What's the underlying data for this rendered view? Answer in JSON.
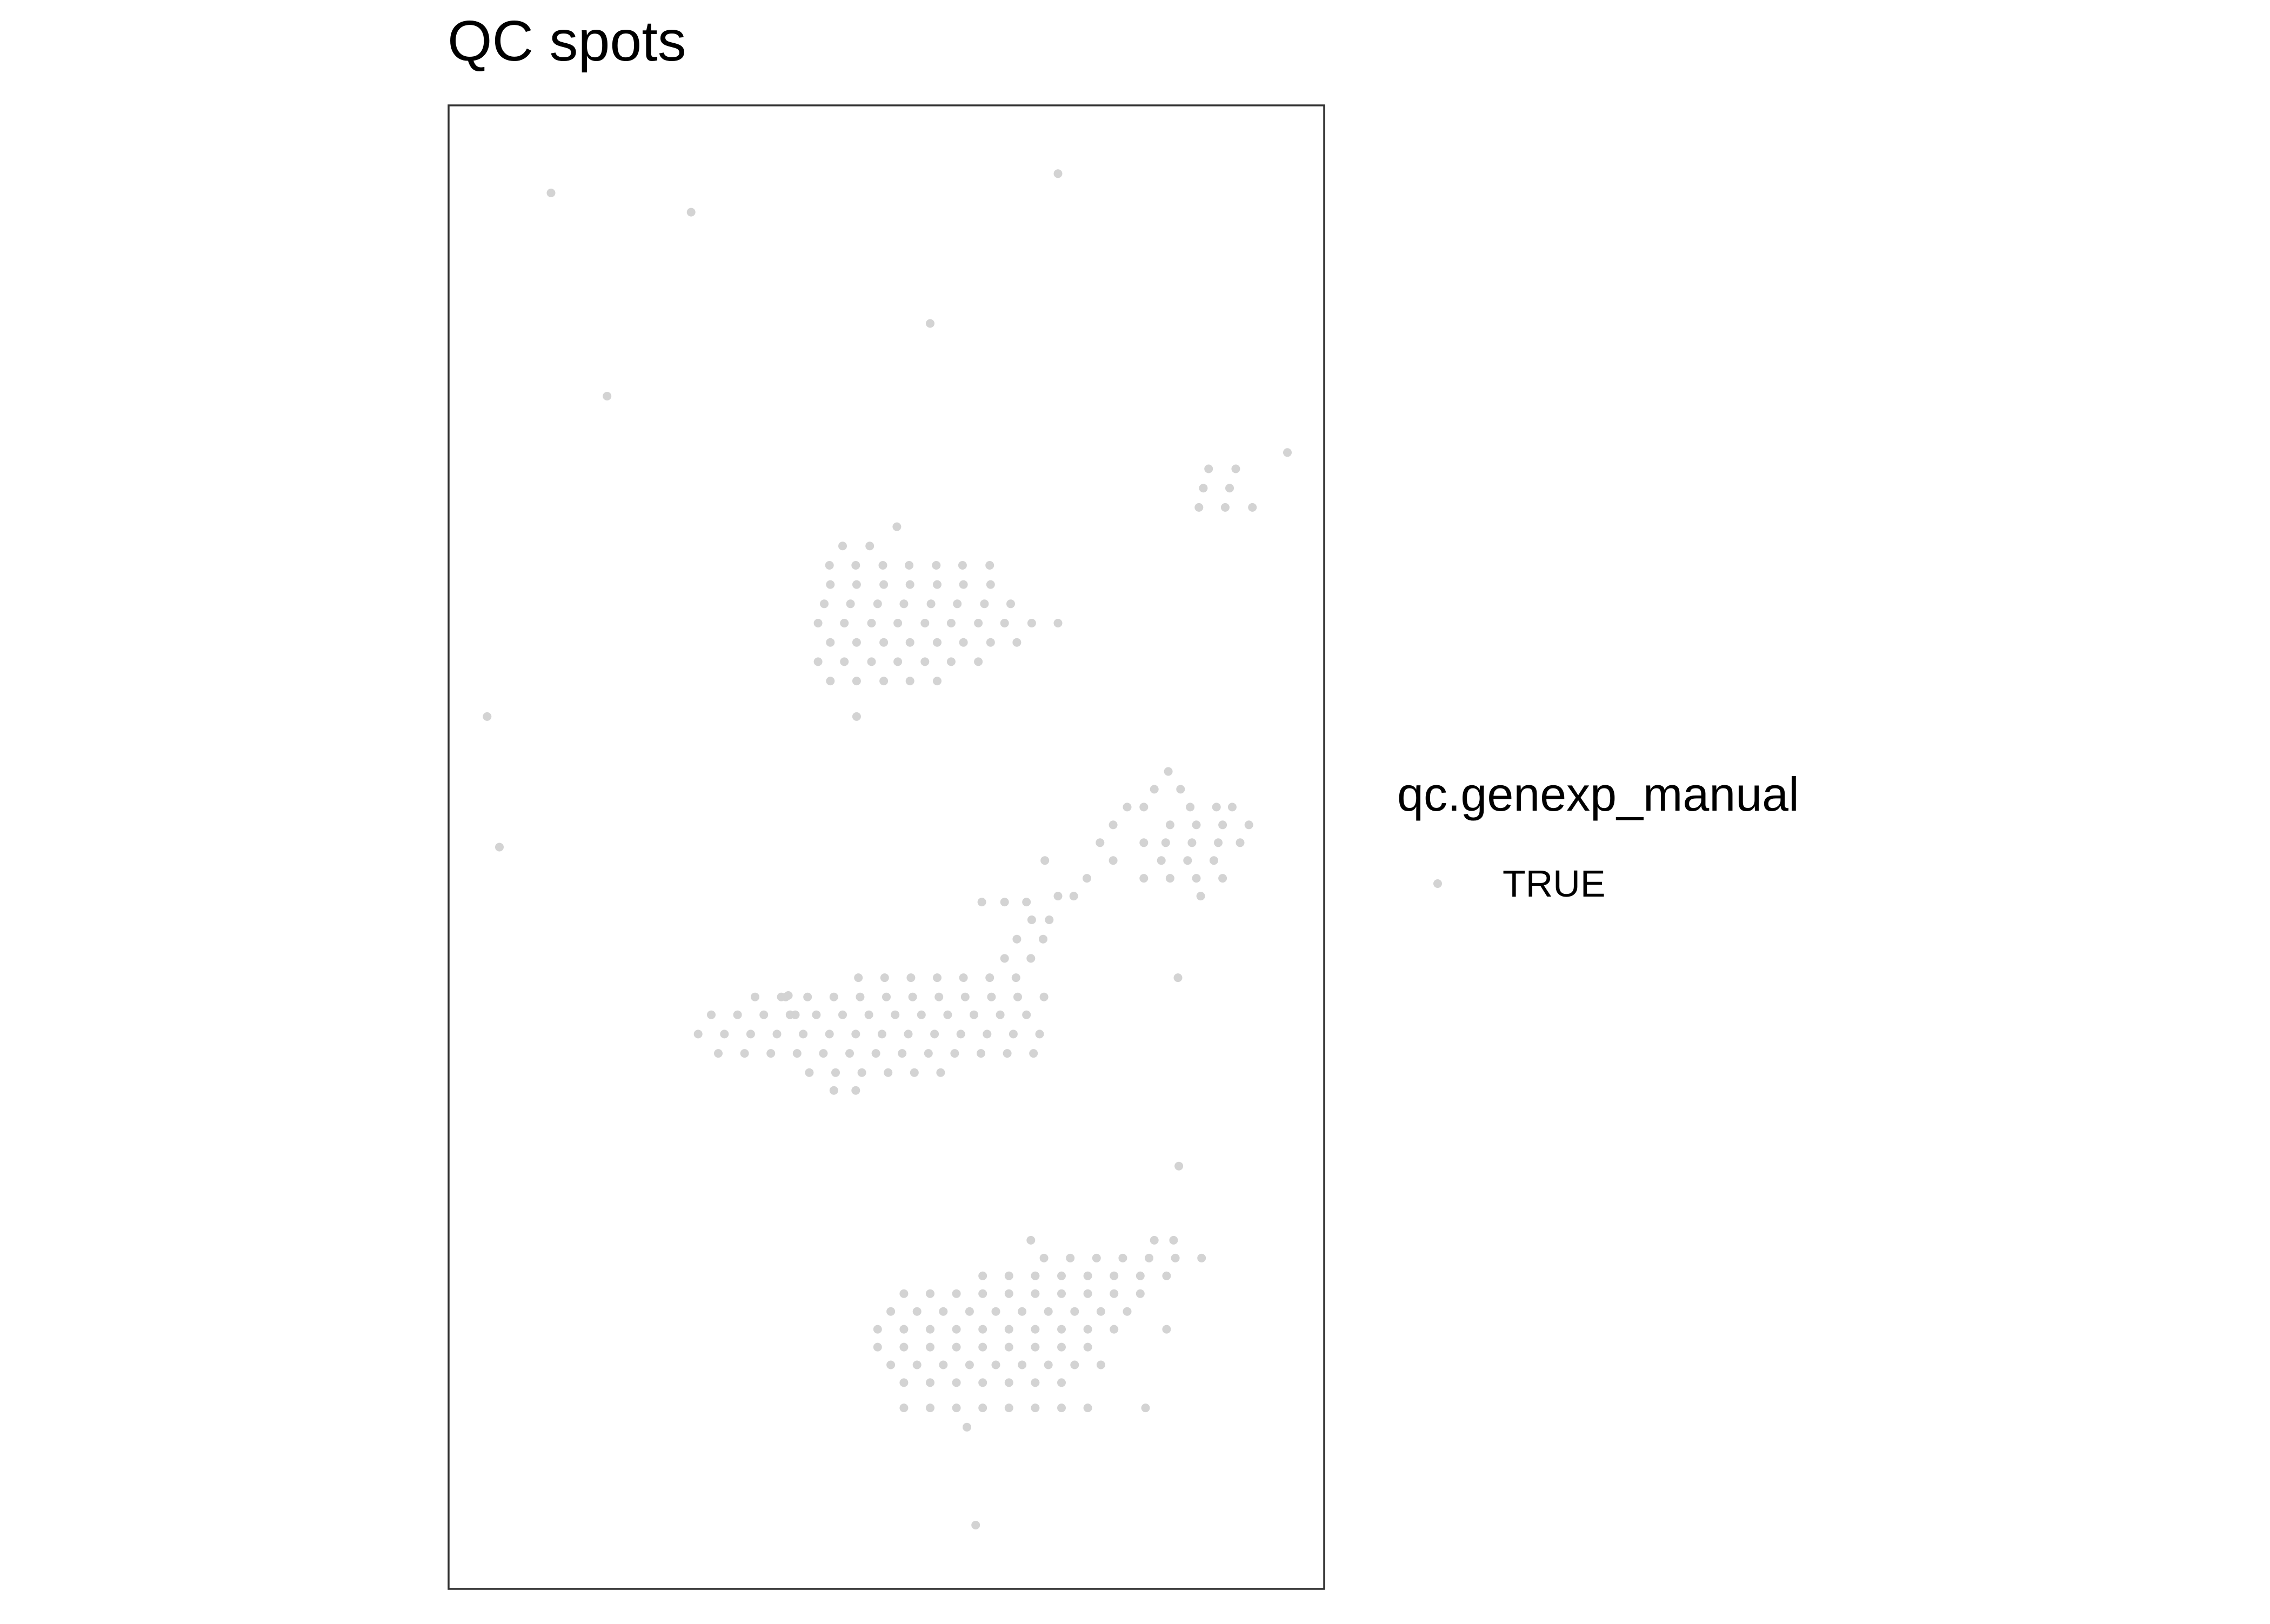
{
  "chart_data": {
    "type": "scatter",
    "title": "QC spots",
    "xlabel": "",
    "ylabel": "",
    "grid": false,
    "axes_visible": false,
    "legend_position": "right",
    "legend": {
      "title": "qc.genexp_manual",
      "entries": [
        {
          "label": "TRUE",
          "color": "#d3d3d3"
        }
      ]
    },
    "xlim": [
      0,
      100
    ],
    "ylim": [
      0,
      100
    ],
    "series": [
      {
        "name": "TRUE",
        "color": "#d3d3d3",
        "points": [
          [
            11.7,
            94.1
          ],
          [
            27.7,
            92.8
          ],
          [
            69.6,
            95.4
          ],
          [
            55.0,
            85.3
          ],
          [
            18.1,
            80.4
          ],
          [
            95.8,
            76.6
          ],
          [
            86.8,
            75.5
          ],
          [
            89.9,
            75.5
          ],
          [
            86.2,
            74.2
          ],
          [
            89.2,
            74.2
          ],
          [
            85.7,
            72.9
          ],
          [
            88.7,
            72.9
          ],
          [
            91.8,
            72.9
          ],
          [
            51.2,
            71.6
          ],
          [
            48.1,
            70.3
          ],
          [
            49.6,
            69.0
          ],
          [
            52.6,
            69.0
          ],
          [
            55.7,
            69.0
          ],
          [
            58.7,
            69.0
          ],
          [
            61.8,
            69.0
          ],
          [
            43.5,
            69.0
          ],
          [
            46.5,
            69.0
          ],
          [
            45.0,
            70.3
          ],
          [
            43.6,
            67.7
          ],
          [
            46.6,
            67.7
          ],
          [
            49.7,
            67.7
          ],
          [
            52.7,
            67.7
          ],
          [
            55.8,
            67.7
          ],
          [
            58.8,
            67.7
          ],
          [
            61.9,
            67.7
          ],
          [
            42.9,
            66.4
          ],
          [
            45.9,
            66.4
          ],
          [
            49.0,
            66.4
          ],
          [
            52.0,
            66.4
          ],
          [
            55.1,
            66.4
          ],
          [
            58.1,
            66.4
          ],
          [
            61.2,
            66.4
          ],
          [
            64.2,
            66.4
          ],
          [
            42.2,
            65.1
          ],
          [
            45.2,
            65.1
          ],
          [
            48.3,
            65.1
          ],
          [
            51.3,
            65.1
          ],
          [
            54.4,
            65.1
          ],
          [
            57.4,
            65.1
          ],
          [
            60.5,
            65.1
          ],
          [
            63.5,
            65.1
          ],
          [
            66.6,
            65.1
          ],
          [
            69.6,
            65.1
          ],
          [
            43.6,
            63.8
          ],
          [
            46.6,
            63.8
          ],
          [
            49.7,
            63.8
          ],
          [
            52.7,
            63.8
          ],
          [
            55.8,
            63.8
          ],
          [
            58.8,
            63.8
          ],
          [
            61.9,
            63.8
          ],
          [
            64.9,
            63.8
          ],
          [
            42.2,
            62.5
          ],
          [
            45.2,
            62.5
          ],
          [
            48.3,
            62.5
          ],
          [
            51.3,
            62.5
          ],
          [
            54.4,
            62.5
          ],
          [
            57.4,
            62.5
          ],
          [
            60.5,
            62.5
          ],
          [
            43.6,
            61.2
          ],
          [
            46.6,
            61.2
          ],
          [
            49.7,
            61.2
          ],
          [
            52.7,
            61.2
          ],
          [
            55.8,
            61.2
          ],
          [
            46.6,
            58.8
          ],
          [
            4.4,
            58.8
          ],
          [
            82.2,
            55.1
          ],
          [
            80.6,
            53.9
          ],
          [
            83.6,
            53.9
          ],
          [
            77.5,
            52.7
          ],
          [
            79.4,
            52.7
          ],
          [
            84.7,
            52.7
          ],
          [
            87.7,
            52.7
          ],
          [
            89.5,
            52.7
          ],
          [
            75.9,
            51.5
          ],
          [
            82.4,
            51.5
          ],
          [
            85.4,
            51.5
          ],
          [
            88.4,
            51.5
          ],
          [
            91.4,
            51.5
          ],
          [
            74.4,
            50.3
          ],
          [
            79.4,
            50.3
          ],
          [
            81.9,
            50.3
          ],
          [
            84.9,
            50.3
          ],
          [
            87.9,
            50.3
          ],
          [
            90.4,
            50.3
          ],
          [
            5.8,
            50.0
          ],
          [
            68.1,
            49.1
          ],
          [
            75.9,
            49.1
          ],
          [
            81.4,
            49.1
          ],
          [
            84.4,
            49.1
          ],
          [
            87.4,
            49.1
          ],
          [
            72.9,
            47.9
          ],
          [
            79.4,
            47.9
          ],
          [
            82.4,
            47.9
          ],
          [
            85.4,
            47.9
          ],
          [
            88.4,
            47.9
          ],
          [
            69.6,
            46.7
          ],
          [
            71.4,
            46.7
          ],
          [
            85.9,
            46.7
          ],
          [
            60.9,
            46.3
          ],
          [
            63.5,
            46.3
          ],
          [
            66.0,
            46.3
          ],
          [
            66.6,
            45.1
          ],
          [
            68.6,
            45.1
          ],
          [
            64.9,
            43.8
          ],
          [
            67.9,
            43.8
          ],
          [
            63.5,
            42.5
          ],
          [
            66.5,
            42.5
          ],
          [
            83.3,
            41.2
          ],
          [
            38.5,
            39.9
          ],
          [
            39.6,
            38.7
          ],
          [
            38.8,
            40.0
          ],
          [
            46.8,
            41.2
          ],
          [
            49.8,
            41.2
          ],
          [
            52.8,
            41.2
          ],
          [
            55.8,
            41.2
          ],
          [
            58.8,
            41.2
          ],
          [
            61.8,
            41.2
          ],
          [
            64.8,
            41.2
          ],
          [
            35.0,
            39.9
          ],
          [
            38.0,
            39.9
          ],
          [
            41.0,
            39.9
          ],
          [
            44.0,
            39.9
          ],
          [
            47.0,
            39.9
          ],
          [
            50.0,
            39.9
          ],
          [
            53.0,
            39.9
          ],
          [
            56.0,
            39.9
          ],
          [
            59.0,
            39.9
          ],
          [
            62.0,
            39.9
          ],
          [
            65.0,
            39.9
          ],
          [
            68.0,
            39.9
          ],
          [
            30.0,
            38.7
          ],
          [
            33.0,
            38.7
          ],
          [
            36.0,
            38.7
          ],
          [
            39.0,
            38.7
          ],
          [
            42.0,
            38.7
          ],
          [
            45.0,
            38.7
          ],
          [
            48.0,
            38.7
          ],
          [
            51.0,
            38.7
          ],
          [
            54.0,
            38.7
          ],
          [
            57.0,
            38.7
          ],
          [
            60.0,
            38.7
          ],
          [
            63.0,
            38.7
          ],
          [
            66.0,
            38.7
          ],
          [
            28.5,
            37.4
          ],
          [
            31.5,
            37.4
          ],
          [
            34.5,
            37.4
          ],
          [
            37.5,
            37.4
          ],
          [
            40.5,
            37.4
          ],
          [
            43.5,
            37.4
          ],
          [
            46.5,
            37.4
          ],
          [
            49.5,
            37.4
          ],
          [
            52.5,
            37.4
          ],
          [
            55.5,
            37.4
          ],
          [
            58.5,
            37.4
          ],
          [
            61.5,
            37.4
          ],
          [
            64.5,
            37.4
          ],
          [
            67.5,
            37.4
          ],
          [
            30.8,
            36.1
          ],
          [
            33.8,
            36.1
          ],
          [
            36.8,
            36.1
          ],
          [
            39.8,
            36.1
          ],
          [
            42.8,
            36.1
          ],
          [
            45.8,
            36.1
          ],
          [
            48.8,
            36.1
          ],
          [
            51.8,
            36.1
          ],
          [
            54.8,
            36.1
          ],
          [
            57.8,
            36.1
          ],
          [
            60.8,
            36.1
          ],
          [
            63.8,
            36.1
          ],
          [
            66.8,
            36.1
          ],
          [
            41.2,
            34.8
          ],
          [
            44.2,
            34.8
          ],
          [
            47.2,
            34.8
          ],
          [
            50.2,
            34.8
          ],
          [
            53.2,
            34.8
          ],
          [
            56.2,
            34.8
          ],
          [
            44.0,
            33.6
          ],
          [
            46.5,
            33.6
          ],
          [
            83.4,
            28.5
          ],
          [
            66.5,
            23.5
          ],
          [
            80.6,
            23.5
          ],
          [
            82.8,
            23.5
          ],
          [
            68.0,
            22.3
          ],
          [
            71.0,
            22.3
          ],
          [
            74.0,
            22.3
          ],
          [
            77.0,
            22.3
          ],
          [
            80.0,
            22.3
          ],
          [
            83.0,
            22.3
          ],
          [
            86.0,
            22.3
          ],
          [
            61.0,
            21.1
          ],
          [
            64.0,
            21.1
          ],
          [
            67.0,
            21.1
          ],
          [
            70.0,
            21.1
          ],
          [
            73.0,
            21.1
          ],
          [
            76.0,
            21.1
          ],
          [
            79.0,
            21.1
          ],
          [
            82.0,
            21.1
          ],
          [
            52.0,
            19.9
          ],
          [
            55.0,
            19.9
          ],
          [
            58.0,
            19.9
          ],
          [
            61.0,
            19.9
          ],
          [
            64.0,
            19.9
          ],
          [
            67.0,
            19.9
          ],
          [
            70.0,
            19.9
          ],
          [
            73.0,
            19.9
          ],
          [
            76.0,
            19.9
          ],
          [
            79.0,
            19.9
          ],
          [
            50.5,
            18.7
          ],
          [
            53.5,
            18.7
          ],
          [
            56.5,
            18.7
          ],
          [
            59.5,
            18.7
          ],
          [
            62.5,
            18.7
          ],
          [
            65.5,
            18.7
          ],
          [
            68.5,
            18.7
          ],
          [
            71.5,
            18.7
          ],
          [
            74.5,
            18.7
          ],
          [
            77.5,
            18.7
          ],
          [
            49.0,
            17.5
          ],
          [
            52.0,
            17.5
          ],
          [
            55.0,
            17.5
          ],
          [
            58.0,
            17.5
          ],
          [
            61.0,
            17.5
          ],
          [
            64.0,
            17.5
          ],
          [
            67.0,
            17.5
          ],
          [
            70.0,
            17.5
          ],
          [
            73.0,
            17.5
          ],
          [
            76.0,
            17.5
          ],
          [
            82.0,
            17.5
          ],
          [
            49.0,
            16.3
          ],
          [
            52.0,
            16.3
          ],
          [
            55.0,
            16.3
          ],
          [
            58.0,
            16.3
          ],
          [
            61.0,
            16.3
          ],
          [
            64.0,
            16.3
          ],
          [
            67.0,
            16.3
          ],
          [
            70.0,
            16.3
          ],
          [
            73.0,
            16.3
          ],
          [
            50.5,
            15.1
          ],
          [
            53.5,
            15.1
          ],
          [
            56.5,
            15.1
          ],
          [
            59.5,
            15.1
          ],
          [
            62.5,
            15.1
          ],
          [
            65.5,
            15.1
          ],
          [
            68.5,
            15.1
          ],
          [
            71.5,
            15.1
          ],
          [
            74.5,
            15.1
          ],
          [
            52.0,
            13.9
          ],
          [
            55.0,
            13.9
          ],
          [
            58.0,
            13.9
          ],
          [
            61.0,
            13.9
          ],
          [
            64.0,
            13.9
          ],
          [
            67.0,
            13.9
          ],
          [
            70.0,
            13.9
          ],
          [
            52.0,
            12.2
          ],
          [
            55.0,
            12.2
          ],
          [
            58.0,
            12.2
          ],
          [
            61.0,
            12.2
          ],
          [
            64.0,
            12.2
          ],
          [
            67.0,
            12.2
          ],
          [
            70.0,
            12.2
          ],
          [
            73.0,
            12.2
          ],
          [
            79.6,
            12.2
          ],
          [
            59.2,
            10.9
          ],
          [
            60.2,
            4.3
          ]
        ]
      }
    ]
  }
}
